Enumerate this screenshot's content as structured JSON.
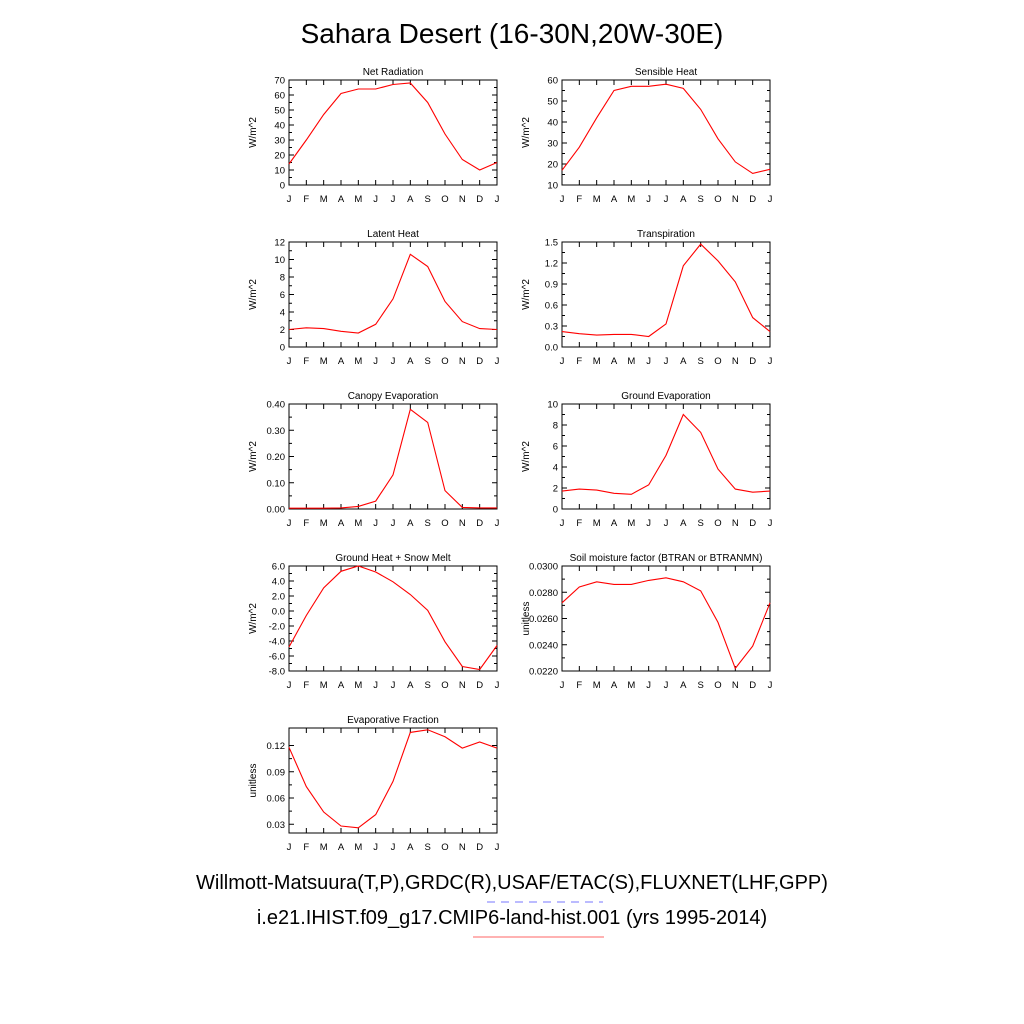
{
  "title": "Sahara Desert (16-30N,20W-30E)",
  "footer": {
    "obs_sources": "Willmott-Matsuura(T,P),GRDC(R),USAF/ETAC(S),FLUXNET(LHF,GPP)",
    "case_label": "i.e21.IHIST.f09_g17.CMIP6-land-hist.001 (yrs 1995-2014)",
    "obs_line_color": "#7777ff",
    "case_line_color": "#ff6666"
  },
  "chart_data": [
    {
      "type": "line",
      "title": "Net Radiation",
      "ylabel": "W/m^2",
      "categories": [
        "J",
        "F",
        "M",
        "A",
        "M",
        "J",
        "J",
        "A",
        "S",
        "O",
        "N",
        "D",
        "J"
      ],
      "ylim": [
        0,
        70
      ],
      "yticks": [
        "0",
        "10",
        "20",
        "30",
        "40",
        "50",
        "60",
        "70"
      ],
      "ytick_values": [
        0,
        10,
        20,
        30,
        40,
        50,
        60,
        70
      ],
      "series": [
        {
          "color": "#ff0000",
          "values": [
            14,
            30,
            47,
            61,
            64,
            64,
            67,
            68,
            55,
            34,
            17,
            10,
            15
          ]
        }
      ]
    },
    {
      "type": "line",
      "title": "Sensible Heat",
      "ylabel": "W/m^2",
      "categories": [
        "J",
        "F",
        "M",
        "A",
        "M",
        "J",
        "J",
        "A",
        "S",
        "O",
        "N",
        "D",
        "J"
      ],
      "ylim": [
        10,
        60
      ],
      "yticks": [
        "10",
        "20",
        "30",
        "40",
        "50",
        "60"
      ],
      "ytick_values": [
        10,
        20,
        30,
        40,
        50,
        60
      ],
      "series": [
        {
          "color": "#ff0000",
          "values": [
            17,
            28,
            42,
            55,
            57,
            57,
            58,
            56,
            46,
            32,
            21,
            15.5,
            17.5
          ]
        }
      ]
    },
    {
      "type": "line",
      "title": "Latent Heat",
      "ylabel": "W/m^2",
      "categories": [
        "J",
        "F",
        "M",
        "A",
        "M",
        "J",
        "J",
        "A",
        "S",
        "O",
        "N",
        "D",
        "J"
      ],
      "ylim": [
        0,
        12
      ],
      "yticks": [
        "0",
        "2",
        "4",
        "6",
        "8",
        "10",
        "12"
      ],
      "ytick_values": [
        0,
        2,
        4,
        6,
        8,
        10,
        12
      ],
      "series": [
        {
          "color": "#ff0000",
          "values": [
            2.0,
            2.2,
            2.1,
            1.8,
            1.6,
            2.6,
            5.5,
            10.6,
            9.2,
            5.2,
            2.9,
            2.1,
            2.0
          ]
        }
      ]
    },
    {
      "type": "line",
      "title": "Transpiration",
      "ylabel": "W/m^2",
      "categories": [
        "J",
        "F",
        "M",
        "A",
        "M",
        "J",
        "J",
        "A",
        "S",
        "O",
        "N",
        "D",
        "J"
      ],
      "ylim": [
        0,
        1.5
      ],
      "yticks": [
        "0.0",
        "0.3",
        "0.6",
        "0.9",
        "1.2",
        "1.5"
      ],
      "ytick_values": [
        0,
        0.3,
        0.6,
        0.9,
        1.2,
        1.5
      ],
      "series": [
        {
          "color": "#ff0000",
          "values": [
            0.22,
            0.19,
            0.17,
            0.18,
            0.18,
            0.15,
            0.33,
            1.16,
            1.47,
            1.23,
            0.93,
            0.42,
            0.22
          ]
        }
      ]
    },
    {
      "type": "line",
      "title": "Canopy Evaporation",
      "ylabel": "W/m^2",
      "categories": [
        "J",
        "F",
        "M",
        "A",
        "M",
        "J",
        "J",
        "A",
        "S",
        "O",
        "N",
        "D",
        "J"
      ],
      "ylim": [
        0,
        0.4
      ],
      "yticks": [
        "0.00",
        "0.10",
        "0.20",
        "0.30",
        "0.40"
      ],
      "ytick_values": [
        0,
        0.1,
        0.2,
        0.3,
        0.4
      ],
      "series": [
        {
          "color": "#ff0000",
          "values": [
            0.003,
            0.003,
            0.003,
            0.004,
            0.01,
            0.03,
            0.13,
            0.38,
            0.33,
            0.07,
            0.006,
            0.004,
            0.004
          ]
        }
      ]
    },
    {
      "type": "line",
      "title": "Ground Evaporation",
      "ylabel": "W/m^2",
      "categories": [
        "J",
        "F",
        "M",
        "A",
        "M",
        "J",
        "J",
        "A",
        "S",
        "O",
        "N",
        "D",
        "J"
      ],
      "ylim": [
        0,
        10
      ],
      "yticks": [
        "0",
        "2",
        "4",
        "6",
        "8",
        "10"
      ],
      "ytick_values": [
        0,
        2,
        4,
        6,
        8,
        10
      ],
      "series": [
        {
          "color": "#ff0000",
          "values": [
            1.7,
            1.9,
            1.8,
            1.5,
            1.4,
            2.3,
            5.1,
            9.0,
            7.3,
            3.8,
            1.9,
            1.6,
            1.7
          ]
        }
      ]
    },
    {
      "type": "line",
      "title": "Ground Heat + Snow Melt",
      "ylabel": "W/m^2",
      "categories": [
        "J",
        "F",
        "M",
        "A",
        "M",
        "J",
        "J",
        "A",
        "S",
        "O",
        "N",
        "D",
        "J"
      ],
      "ylim": [
        -8,
        6
      ],
      "yticks": [
        "-8.0",
        "-6.0",
        "-4.0",
        "-2.0",
        "0.0",
        "2.0",
        "4.0",
        "6.0"
      ],
      "ytick_values": [
        -8,
        -6,
        -4,
        -2,
        0,
        2,
        4,
        6
      ],
      "series": [
        {
          "color": "#ff0000",
          "values": [
            -4.8,
            -0.6,
            3.1,
            5.3,
            6.0,
            5.2,
            3.9,
            2.2,
            0.1,
            -4.1,
            -7.4,
            -7.8,
            -4.6
          ]
        }
      ]
    },
    {
      "type": "line",
      "title": "Soil moisture factor (BTRAN or BTRANMN)",
      "ylabel": "unitless",
      "categories": [
        "J",
        "F",
        "M",
        "A",
        "M",
        "J",
        "J",
        "A",
        "S",
        "O",
        "N",
        "D",
        "J"
      ],
      "ylim": [
        0.022,
        0.03
      ],
      "yticks": [
        "0.0220",
        "0.0240",
        "0.0260",
        "0.0280",
        "0.0300"
      ],
      "ytick_values": [
        0.022,
        0.024,
        0.026,
        0.028,
        0.03
      ],
      "series": [
        {
          "color": "#ff0000",
          "values": [
            0.0272,
            0.0284,
            0.0288,
            0.0286,
            0.0286,
            0.0289,
            0.0291,
            0.0288,
            0.0281,
            0.0257,
            0.0222,
            0.0239,
            0.0272
          ]
        }
      ]
    },
    {
      "type": "line",
      "title": "Evaporative Fraction",
      "ylabel": "unitless",
      "categories": [
        "J",
        "F",
        "M",
        "A",
        "M",
        "J",
        "J",
        "A",
        "S",
        "O",
        "N",
        "D",
        "J"
      ],
      "ylim": [
        0.02,
        0.14
      ],
      "yticks": [
        "0.03",
        "0.06",
        "0.09",
        "0.12"
      ],
      "ytick_values": [
        0.03,
        0.06,
        0.09,
        0.12
      ],
      "series": [
        {
          "color": "#ff0000",
          "values": [
            0.118,
            0.073,
            0.044,
            0.028,
            0.026,
            0.041,
            0.079,
            0.135,
            0.138,
            0.13,
            0.117,
            0.124,
            0.117
          ]
        }
      ]
    }
  ]
}
